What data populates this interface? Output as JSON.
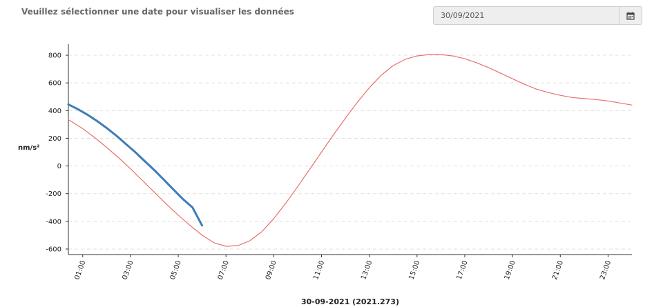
{
  "header": {
    "prompt_text": "Veuillez sélectionner une date pour visualiser les données",
    "date_value": "30/09/2021",
    "calendar_icon": "calendar-icon"
  },
  "chart_data": {
    "type": "line",
    "title": "",
    "xlabel": "30-09-2021 (2021.273)",
    "ylabel": "nm/s²",
    "xlim": [
      0.4,
      24.0
    ],
    "ylim": [
      -640,
      880
    ],
    "x_unit": "hours",
    "y_ticks": [
      800,
      600,
      400,
      200,
      0,
      -200,
      -400,
      -600
    ],
    "y_tick_labels": [
      "800",
      "600",
      "400",
      "200",
      "0",
      "-200",
      "-400",
      "-600"
    ],
    "x_ticks": [
      1,
      3,
      5,
      7,
      9,
      11,
      13,
      15,
      17,
      19,
      21,
      23
    ],
    "x_tick_labels": [
      "01:00",
      "03:00",
      "05:00",
      "07:00",
      "09:00",
      "11:00",
      "13:00",
      "15:00",
      "17:00",
      "19:00",
      "21:00",
      "23:00"
    ],
    "grid": "horizontal dashed",
    "series": [
      {
        "color": "#e8706b",
        "x": [
          0.4,
          1,
          1.5,
          2,
          2.5,
          3,
          3.5,
          4,
          4.5,
          5,
          5.5,
          6,
          6.5,
          7,
          7.5,
          8,
          8.5,
          9,
          9.5,
          10,
          10.5,
          11,
          11.5,
          12,
          12.5,
          13,
          13.5,
          14,
          14.5,
          15,
          15.5,
          16,
          16.5,
          17,
          17.5,
          18,
          18.5,
          19,
          19.5,
          20,
          20.5,
          21,
          21.5,
          22,
          22.5,
          23,
          23.5,
          24
        ],
        "y": [
          335,
          270,
          205,
          135,
          60,
          -20,
          -105,
          -190,
          -275,
          -355,
          -430,
          -500,
          -555,
          -580,
          -575,
          -540,
          -475,
          -380,
          -270,
          -150,
          -25,
          100,
          225,
          345,
          460,
          565,
          655,
          725,
          770,
          795,
          805,
          805,
          795,
          775,
          745,
          710,
          670,
          630,
          590,
          555,
          530,
          510,
          495,
          487,
          480,
          470,
          455,
          440
        ]
      },
      {
        "color": "#3f7cb6",
        "x": [
          0.4,
          0.8,
          1.2,
          1.6,
          2.0,
          2.4,
          2.8,
          3.2,
          3.6,
          4.0,
          4.4,
          4.8,
          5.2,
          5.6,
          6.0
        ],
        "y": [
          445,
          410,
          370,
          325,
          275,
          220,
          160,
          100,
          35,
          -30,
          -100,
          -170,
          -240,
          -300,
          -430
        ]
      }
    ]
  }
}
